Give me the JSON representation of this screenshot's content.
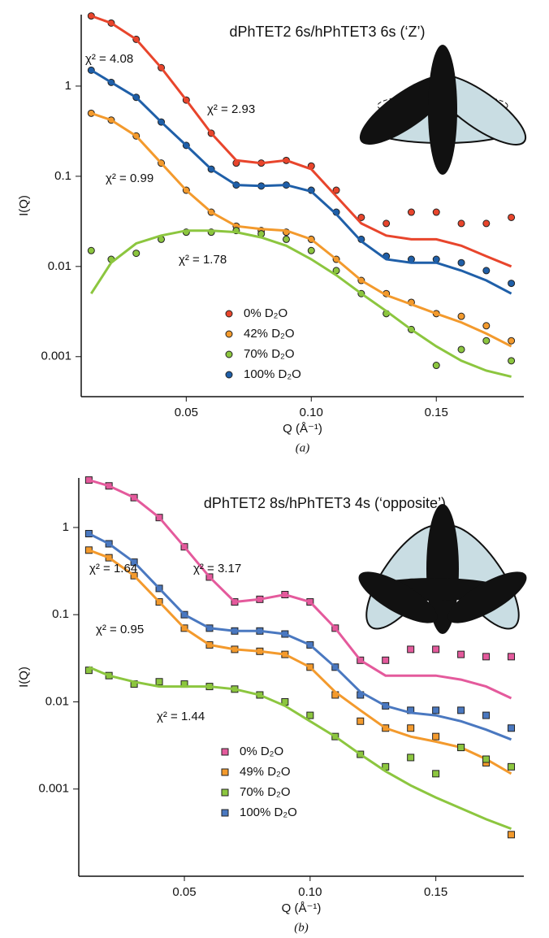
{
  "chart_data": [
    {
      "type": "scatter",
      "title": "dPhTET2 6s/hPhTET3 6s (‘Z’)",
      "caption": "(a)",
      "x_label": "Q (Å⁻¹)",
      "y_label": "I(Q)",
      "log_y": true,
      "xlim": [
        0.008,
        0.185
      ],
      "ylim": [
        0.00036,
        6.2
      ],
      "xticks": [
        0.05,
        {
          "value": 0.1,
          "label": "0.10"
        },
        0.15
      ],
      "yticks": [
        0.001,
        0.01,
        0.1,
        1
      ],
      "annotations": [
        "χ² = 4.08",
        "χ² = 2.93",
        "χ² = 0.99",
        "χ² = 1.78"
      ],
      "x": [
        0.012,
        0.02,
        0.03,
        0.04,
        0.05,
        0.06,
        0.07,
        0.08,
        0.09,
        0.1,
        0.11,
        0.12,
        0.13,
        0.14,
        0.15,
        0.16,
        0.17,
        0.18
      ],
      "series": [
        {
          "name": "0% D₂O",
          "color": "#e8452c",
          "marker": "circle",
          "values": [
            6,
            5,
            3.3,
            1.6,
            0.7,
            0.3,
            0.14,
            0.14,
            0.15,
            0.13,
            0.07,
            0.035,
            0.03,
            0.04,
            0.04,
            0.03,
            0.03,
            0.035
          ],
          "fit": [
            6,
            5,
            3.3,
            1.6,
            0.7,
            0.3,
            0.15,
            0.14,
            0.15,
            0.12,
            0.06,
            0.03,
            0.022,
            0.02,
            0.02,
            0.017,
            0.013,
            0.01
          ]
        },
        {
          "name": "42% D₂O",
          "color": "#f39a2d",
          "marker": "circle",
          "values": [
            0.5,
            0.42,
            0.28,
            0.14,
            0.07,
            0.04,
            0.028,
            0.025,
            0.024,
            0.02,
            0.012,
            0.007,
            0.005,
            0.004,
            0.003,
            0.0028,
            0.0022,
            0.0015
          ],
          "fit": [
            0.5,
            0.42,
            0.28,
            0.14,
            0.07,
            0.04,
            0.028,
            0.026,
            0.025,
            0.02,
            0.012,
            0.007,
            0.0048,
            0.0038,
            0.003,
            0.0024,
            0.0018,
            0.0013
          ]
        },
        {
          "name": "70% D₂O",
          "color": "#8cc63f",
          "marker": "circle",
          "values": [
            0.015,
            0.012,
            0.014,
            0.02,
            0.024,
            0.024,
            0.025,
            0.023,
            0.02,
            0.015,
            0.009,
            0.005,
            0.003,
            0.002,
            0.0008,
            0.0012,
            0.0015,
            0.0009
          ],
          "fit": [
            0.005,
            0.011,
            0.018,
            0.022,
            0.025,
            0.025,
            0.024,
            0.021,
            0.017,
            0.012,
            0.008,
            0.005,
            0.0032,
            0.002,
            0.0013,
            0.0009,
            0.0007,
            0.0006
          ]
        },
        {
          "name": "100% D₂O",
          "color": "#1f5fa8",
          "marker": "circle",
          "values": [
            1.5,
            1.1,
            0.75,
            0.4,
            0.22,
            0.12,
            0.08,
            0.078,
            0.08,
            0.07,
            0.04,
            0.02,
            0.013,
            0.012,
            0.012,
            0.011,
            0.009,
            0.0065
          ],
          "fit": [
            1.5,
            1.1,
            0.75,
            0.4,
            0.22,
            0.12,
            0.08,
            0.078,
            0.08,
            0.068,
            0.038,
            0.019,
            0.012,
            0.011,
            0.011,
            0.009,
            0.007,
            0.005
          ]
        }
      ]
    },
    {
      "type": "scatter",
      "title": "dPhTET2 8s/hPhTET3 4s (‘opposite’)",
      "caption": "(b)",
      "x_label": "Q (Å⁻¹)",
      "y_label": "I(Q)",
      "log_y": true,
      "xlim": [
        0.008,
        0.185
      ],
      "ylim": [
        0.0001,
        3.7
      ],
      "xticks": [
        0.05,
        {
          "value": 0.1,
          "label": "0.10"
        },
        0.15
      ],
      "yticks": [
        0.001,
        0.01,
        0.1,
        1
      ],
      "annotations": [
        "χ² = 1.64",
        "χ² = 3.17",
        "χ² = 0.95",
        "χ² = 1.44"
      ],
      "x": [
        0.012,
        0.02,
        0.03,
        0.04,
        0.05,
        0.06,
        0.07,
        0.08,
        0.09,
        0.1,
        0.11,
        0.12,
        0.13,
        0.14,
        0.15,
        0.16,
        0.17,
        0.18
      ],
      "series": [
        {
          "name": "0% D₂O",
          "color": "#e45a9c",
          "marker": "square",
          "values": [
            3.5,
            3,
            2.2,
            1.3,
            0.6,
            0.27,
            0.14,
            0.15,
            0.17,
            0.14,
            0.07,
            0.03,
            0.03,
            0.04,
            0.04,
            0.035,
            0.033,
            0.033
          ],
          "fit": [
            3.5,
            3,
            2.2,
            1.3,
            0.6,
            0.27,
            0.14,
            0.15,
            0.17,
            0.14,
            0.07,
            0.03,
            0.02,
            0.02,
            0.02,
            0.018,
            0.015,
            0.011
          ]
        },
        {
          "name": "49% D₂O",
          "color": "#f39a2d",
          "marker": "square",
          "values": [
            0.55,
            0.45,
            0.28,
            0.14,
            0.07,
            0.045,
            0.04,
            0.038,
            0.035,
            0.025,
            0.012,
            0.006,
            0.005,
            0.005,
            0.004,
            0.003,
            0.002,
            0.0003
          ],
          "fit": [
            0.55,
            0.45,
            0.28,
            0.14,
            0.07,
            0.045,
            0.04,
            0.038,
            0.035,
            0.025,
            0.013,
            0.008,
            0.005,
            0.004,
            0.0035,
            0.003,
            0.0022,
            0.0015
          ]
        },
        {
          "name": "70% D₂O",
          "color": "#8cc63f",
          "marker": "square",
          "values": [
            0.023,
            0.02,
            0.016,
            0.017,
            0.016,
            0.015,
            0.014,
            0.012,
            0.01,
            0.007,
            0.004,
            0.0025,
            0.0018,
            0.0023,
            0.0015,
            0.003,
            0.0022,
            0.0018
          ],
          "fit": [
            0.025,
            0.02,
            0.017,
            0.015,
            0.015,
            0.015,
            0.014,
            0.012,
            0.009,
            0.006,
            0.004,
            0.0025,
            0.0016,
            0.0011,
            0.0008,
            0.0006,
            0.00045,
            0.00035
          ]
        },
        {
          "name": "100% D₂O",
          "color": "#4a78c0",
          "marker": "square",
          "values": [
            0.85,
            0.65,
            0.4,
            0.2,
            0.1,
            0.07,
            0.065,
            0.065,
            0.06,
            0.045,
            0.025,
            0.012,
            0.009,
            0.008,
            0.008,
            0.008,
            0.007,
            0.005
          ],
          "fit": [
            0.85,
            0.65,
            0.4,
            0.2,
            0.1,
            0.07,
            0.065,
            0.065,
            0.06,
            0.045,
            0.025,
            0.013,
            0.009,
            0.0075,
            0.007,
            0.006,
            0.0048,
            0.0037
          ]
        }
      ]
    }
  ]
}
